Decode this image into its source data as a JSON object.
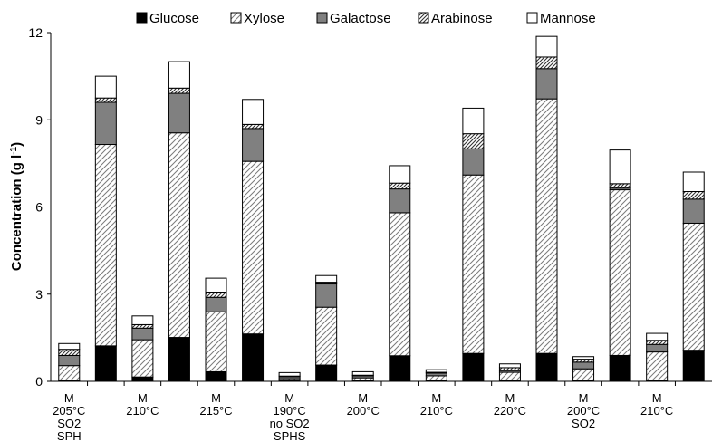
{
  "chart_data": {
    "type": "bar",
    "stacked": true,
    "ylabel": "Concentration (g l",
    "ylabel_sup": "-1",
    "ylabel_end": ")",
    "ylim": [
      0,
      12
    ],
    "yticks": [
      "0",
      "3",
      "6",
      "9",
      "12"
    ],
    "grid": false,
    "legend_position": "top",
    "series": [
      {
        "name": "Glucose",
        "pattern": "solid-black"
      },
      {
        "name": "Xylose",
        "pattern": "hatch-light"
      },
      {
        "name": "Galactose",
        "pattern": "solid-gray"
      },
      {
        "name": "Arabinose",
        "pattern": "hatch-dense"
      },
      {
        "name": "Mannose",
        "pattern": "white"
      }
    ],
    "bars": [
      [
        0.02,
        0.52,
        0.35,
        0.21,
        0.2
      ],
      [
        1.22,
        6.93,
        1.45,
        0.15,
        0.75
      ],
      [
        0.15,
        1.28,
        0.4,
        0.12,
        0.3
      ],
      [
        1.51,
        7.04,
        1.36,
        0.18,
        0.91
      ],
      [
        0.33,
        2.06,
        0.5,
        0.18,
        0.48
      ],
      [
        1.63,
        5.94,
        1.13,
        0.14,
        0.86
      ],
      [
        0.02,
        0.07,
        0.07,
        0.02,
        0.12
      ],
      [
        0.56,
        1.99,
        0.8,
        0.06,
        0.23
      ],
      [
        0.02,
        0.1,
        0.07,
        0.02,
        0.12
      ],
      [
        0.88,
        4.92,
        0.82,
        0.2,
        0.6
      ],
      [
        0.02,
        0.17,
        0.09,
        0.03,
        0.09
      ],
      [
        0.96,
        6.14,
        0.9,
        0.52,
        0.88
      ],
      [
        0.02,
        0.29,
        0.06,
        0.1,
        0.13
      ],
      [
        0.96,
        8.76,
        1.04,
        0.4,
        0.71
      ],
      [
        0.03,
        0.4,
        0.23,
        0.1,
        0.09
      ],
      [
        0.89,
        5.7,
        0.06,
        0.15,
        1.16
      ],
      [
        0.03,
        0.98,
        0.26,
        0.14,
        0.24
      ],
      [
        1.07,
        4.37,
        0.83,
        0.26,
        0.67
      ]
    ],
    "category_labels": [
      {
        "lines": [
          "M",
          "205°C",
          "SO2",
          "SPH"
        ]
      },
      {
        "lines": [
          "M",
          "210°C"
        ]
      },
      {
        "lines": [
          "M",
          "215°C"
        ]
      },
      {
        "lines": [
          "M",
          "190°C",
          "no SO2",
          "SPHS"
        ]
      },
      {
        "lines": [
          "M",
          "200°C"
        ]
      },
      {
        "lines": [
          "M",
          "210°C"
        ]
      },
      {
        "lines": [
          "M",
          "220°C"
        ]
      },
      {
        "lines": [
          "M",
          "200°C",
          "SO2"
        ]
      },
      {
        "lines": [
          "M",
          "210°C"
        ]
      }
    ]
  }
}
